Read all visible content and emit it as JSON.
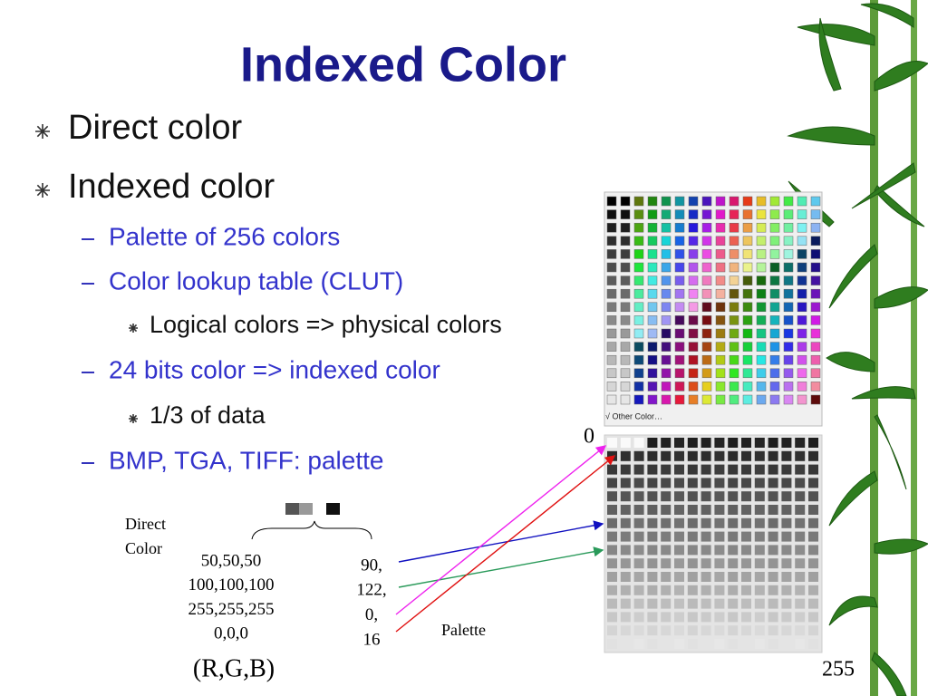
{
  "title": "Indexed Color",
  "bullets": [
    {
      "text": "Direct color"
    },
    {
      "text": "Indexed color",
      "sub": [
        {
          "text": "Palette of 256 colors"
        },
        {
          "text": "Color lookup table (CLUT)",
          "sub": [
            {
              "text": "Logical colors => physical colors"
            }
          ]
        },
        {
          "text": "24 bits color => indexed color",
          "sub": [
            {
              "text": "1/3 of data"
            }
          ]
        },
        {
          "text": "BMP, TGA, TIFF: palette"
        }
      ]
    }
  ],
  "diagram": {
    "direct_color_label": [
      "Direct",
      "Color"
    ],
    "rgb_values": [
      "50,50,50",
      "100,100,100",
      "255,255,255",
      "0,0,0"
    ],
    "index_values": [
      "90,",
      "122,",
      "0,",
      "16"
    ],
    "palette_label": "Palette",
    "rgb_label": "(R,G,B)",
    "palette_start": "0",
    "palette_end": "255",
    "menu_item": "√ Other Color…"
  }
}
